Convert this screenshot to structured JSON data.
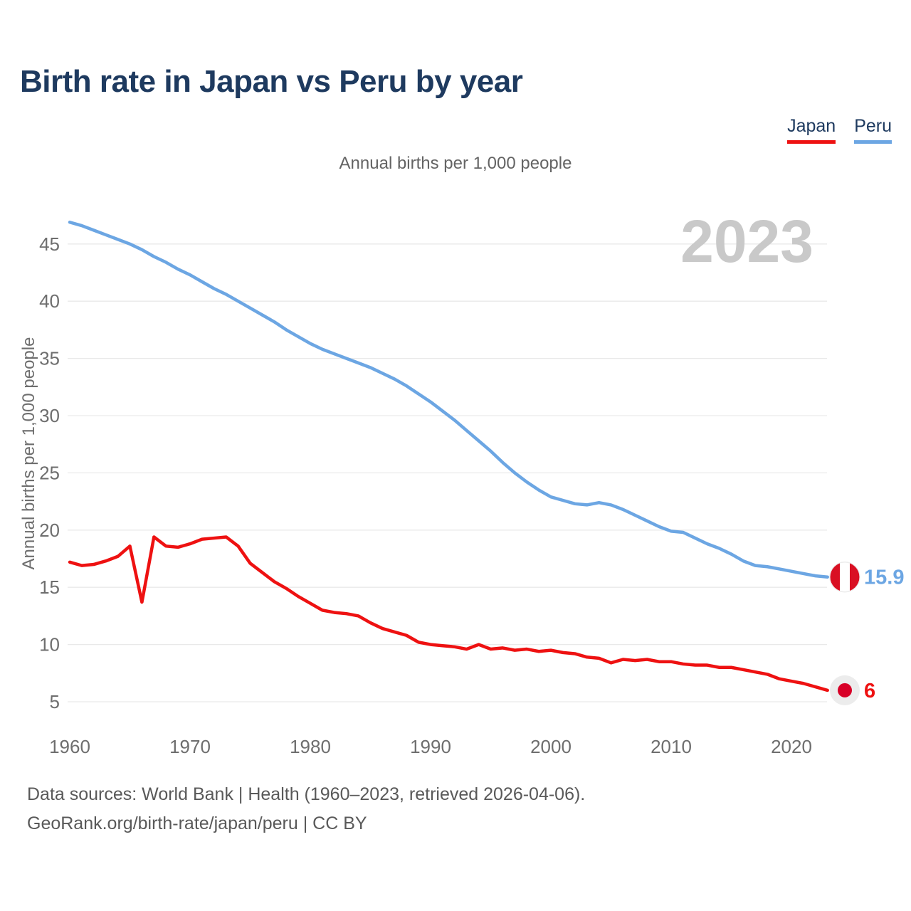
{
  "page": {
    "title": "Birth rate in Japan vs Peru by year",
    "subtitle": "Annual births per 1,000 people",
    "footer_line1": "Data sources: World Bank | Health (1960–2023, retrieved 2026-04-06).",
    "footer_line2": "GeoRank.org/birth-rate/japan/peru | CC BY"
  },
  "legend": {
    "items": [
      {
        "label": "Japan",
        "color": "#ee1111"
      },
      {
        "label": "Peru",
        "color": "#6ca6e3"
      }
    ]
  },
  "colors": {
    "title": "#1e3a5f",
    "subtitle": "#646464",
    "tick_label": "#6e6e6e",
    "axis_label": "#6e6e6e",
    "gridline": "#e9e9e9",
    "watermark": "#c9c9c9",
    "footer": "#595959",
    "japan_red": "#ee1111",
    "peru_blue": "#6ca6e3",
    "peru_flag_red": "#d91023",
    "japan_flag_red": "#d80027",
    "flag_circle_bg": "#ececec"
  },
  "chart_data": {
    "type": "line",
    "title": "Birth rate in Japan vs Peru by year",
    "subtitle": "Annual births per 1,000 people",
    "ylabel": "Annual births per 1,000 people",
    "watermark": "2023",
    "grid": "horizontal",
    "legend_position": "top-right",
    "xlim": [
      1960,
      2023
    ],
    "ylim": [
      5,
      47
    ],
    "yticks": [
      5,
      10,
      15,
      20,
      25,
      30,
      35,
      40,
      45
    ],
    "xticks": [
      1960,
      1970,
      1980,
      1990,
      2000,
      2010,
      2020
    ],
    "years": [
      1960,
      1961,
      1962,
      1963,
      1964,
      1965,
      1966,
      1967,
      1968,
      1969,
      1970,
      1971,
      1972,
      1973,
      1974,
      1975,
      1976,
      1977,
      1978,
      1979,
      1980,
      1981,
      1982,
      1983,
      1984,
      1985,
      1986,
      1987,
      1988,
      1989,
      1990,
      1991,
      1992,
      1993,
      1994,
      1995,
      1996,
      1997,
      1998,
      1999,
      2000,
      2001,
      2002,
      2003,
      2004,
      2005,
      2006,
      2007,
      2008,
      2009,
      2010,
      2011,
      2012,
      2013,
      2014,
      2015,
      2016,
      2017,
      2018,
      2019,
      2020,
      2021,
      2022,
      2023
    ],
    "series": [
      {
        "name": "Peru",
        "color": "#6ca6e3",
        "end_label": "15.9",
        "flag": "peru",
        "values": [
          46.9,
          46.6,
          46.2,
          45.8,
          45.4,
          45.0,
          44.5,
          43.9,
          43.4,
          42.8,
          42.3,
          41.7,
          41.1,
          40.6,
          40.0,
          39.4,
          38.8,
          38.2,
          37.5,
          36.9,
          36.3,
          35.8,
          35.4,
          35.0,
          34.6,
          34.2,
          33.7,
          33.2,
          32.6,
          31.9,
          31.2,
          30.4,
          29.6,
          28.7,
          27.8,
          26.9,
          25.9,
          25.0,
          24.2,
          23.5,
          22.9,
          22.6,
          22.3,
          22.2,
          22.4,
          22.2,
          21.8,
          21.3,
          20.8,
          20.3,
          19.9,
          19.8,
          19.3,
          18.8,
          18.4,
          17.9,
          17.3,
          16.9,
          16.8,
          16.6,
          16.4,
          16.2,
          16.0,
          15.9
        ]
      },
      {
        "name": "Japan",
        "color": "#ee1111",
        "end_label": "6",
        "flag": "japan",
        "values": [
          17.2,
          16.9,
          17.0,
          17.3,
          17.7,
          18.6,
          13.7,
          19.4,
          18.6,
          18.5,
          18.8,
          19.2,
          19.3,
          19.4,
          18.6,
          17.1,
          16.3,
          15.5,
          14.9,
          14.2,
          13.6,
          13.0,
          12.8,
          12.7,
          12.5,
          11.9,
          11.4,
          11.1,
          10.8,
          10.2,
          10.0,
          9.9,
          9.8,
          9.6,
          10.0,
          9.6,
          9.7,
          9.5,
          9.6,
          9.4,
          9.5,
          9.3,
          9.2,
          8.9,
          8.8,
          8.4,
          8.7,
          8.6,
          8.7,
          8.5,
          8.5,
          8.3,
          8.2,
          8.2,
          8.0,
          8.0,
          7.8,
          7.6,
          7.4,
          7.0,
          6.8,
          6.6,
          6.3,
          6.0
        ]
      }
    ]
  }
}
